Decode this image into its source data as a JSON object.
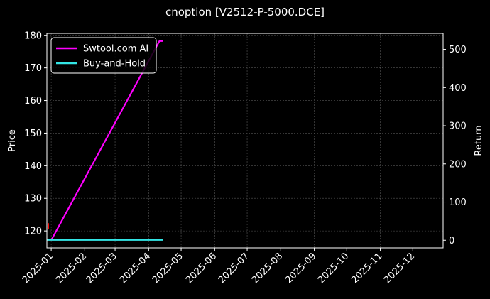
{
  "chart_data": {
    "type": "line",
    "title": "cnoption [V2512-P-5000.DCE]",
    "ylabel": "Price",
    "y2label": "Return",
    "xlim": [
      "2024-12-28",
      "2025-12-29"
    ],
    "ylim": [
      114.8,
      180.6
    ],
    "y2lim": [
      -20,
      542
    ],
    "yticks": [
      120,
      130,
      140,
      150,
      160,
      170,
      180
    ],
    "y2ticks": [
      0,
      100,
      200,
      300,
      400,
      500
    ],
    "xticks": [
      "2025-01",
      "2025-02",
      "2025-03",
      "2025-04",
      "2025-05",
      "2025-06",
      "2025-07",
      "2025-08",
      "2025-09",
      "2025-10",
      "2025-11",
      "2025-12"
    ],
    "xtick_dates": [
      "2025-01-01",
      "2025-02-01",
      "2025-03-01",
      "2025-04-01",
      "2025-05-01",
      "2025-06-01",
      "2025-07-01",
      "2025-08-01",
      "2025-09-01",
      "2025-10-01",
      "2025-11-01",
      "2025-12-01"
    ],
    "grid": true,
    "legend": "upper-left",
    "background": "#000000",
    "series": [
      {
        "name": "Swtool.com AI",
        "axis": "right",
        "color": "#ff00ff",
        "x": [
          "2025-01-01",
          "2025-04-11",
          "2025-04-14"
        ],
        "values": [
          0,
          522,
          522
        ]
      },
      {
        "name": "Buy-and-Hold",
        "axis": "right",
        "color": "#33e6e6",
        "x": [
          "2024-12-28",
          "2025-04-14"
        ],
        "values": [
          1,
          1
        ]
      }
    ],
    "markers": [
      {
        "x": "2024-12-28",
        "y": 121.5,
        "color": "#ff0000"
      }
    ]
  }
}
